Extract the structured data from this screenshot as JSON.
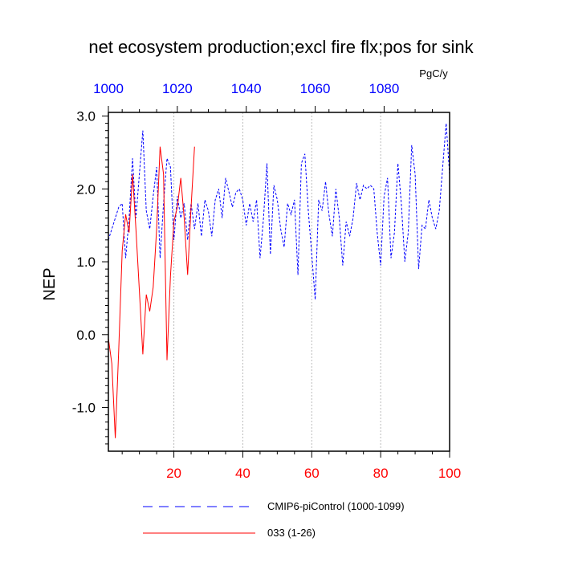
{
  "chart_data": {
    "type": "line",
    "title": "net ecosystem production;excl fire flx;pos for sink",
    "units": "PgC/y",
    "ylabel": "NEP",
    "xlim": [
      1,
      100
    ],
    "ylim": [
      -1.6,
      3.05
    ],
    "x_ticks": [
      20,
      40,
      60,
      80,
      100
    ],
    "x_ticks_top": [
      1000,
      1020,
      1040,
      1060,
      1080
    ],
    "y_ticks": [
      "-1.0",
      "0.0",
      "1.0",
      "2.0",
      "3.0"
    ],
    "y_tick_values": [
      -1.0,
      0.0,
      1.0,
      2.0,
      3.0
    ],
    "grid": "vertical dashed",
    "legend_position": "bottom",
    "colors": {
      "ctrl": "#0000ff",
      "run": "#ff0000",
      "tick_bottom": "#ff0000",
      "tick_top": "#0000ff"
    },
    "series": [
      {
        "name": "CMIP6-piControl (1000-1099)",
        "style": "dashed",
        "color": "#0000ff",
        "x": [
          1,
          2,
          3,
          4,
          5,
          6,
          7,
          8,
          9,
          10,
          11,
          12,
          13,
          14,
          15,
          16,
          17,
          18,
          19,
          20,
          21,
          22,
          23,
          24,
          25,
          26,
          27,
          28,
          29,
          30,
          31,
          32,
          33,
          34,
          35,
          36,
          37,
          38,
          39,
          40,
          41,
          42,
          43,
          44,
          45,
          46,
          47,
          48,
          49,
          50,
          51,
          52,
          53,
          54,
          55,
          56,
          57,
          58,
          59,
          60,
          61,
          62,
          63,
          64,
          65,
          66,
          67,
          68,
          69,
          70,
          71,
          72,
          73,
          74,
          75,
          76,
          77,
          78,
          79,
          80,
          81,
          82,
          83,
          84,
          85,
          86,
          87,
          88,
          89,
          90,
          91,
          92,
          93,
          94,
          95,
          96,
          97,
          98,
          99,
          100
        ],
        "y": [
          1.3,
          1.45,
          1.6,
          1.75,
          1.8,
          1.05,
          1.6,
          2.42,
          1.6,
          2.2,
          2.8,
          1.7,
          1.45,
          1.9,
          2.3,
          1.05,
          1.8,
          2.42,
          2.3,
          1.3,
          1.9,
          1.6,
          1.8,
          1.3,
          1.8,
          1.45,
          1.8,
          1.35,
          1.85,
          1.7,
          1.35,
          1.85,
          2.0,
          1.6,
          2.15,
          1.95,
          1.75,
          1.95,
          2.0,
          1.85,
          1.5,
          1.8,
          1.55,
          1.85,
          1.05,
          1.6,
          2.35,
          1.1,
          2.05,
          1.85,
          1.45,
          1.2,
          1.8,
          1.65,
          1.85,
          0.82,
          2.35,
          2.48,
          1.7,
          1.1,
          0.48,
          1.85,
          1.7,
          2.1,
          1.65,
          1.35,
          2.0,
          1.6,
          0.95,
          1.55,
          1.35,
          1.6,
          2.08,
          1.85,
          2.05,
          2.0,
          2.05,
          2.0,
          1.4,
          0.95,
          1.9,
          2.15,
          1.05,
          1.4,
          2.35,
          1.8,
          1.0,
          1.4,
          2.6,
          2.2,
          0.9,
          1.5,
          1.45,
          1.85,
          1.6,
          1.45,
          1.7,
          2.3,
          2.9,
          2.2
        ]
      },
      {
        "name": "033 (1-26)",
        "style": "solid",
        "color": "#ff0000",
        "x": [
          1,
          2,
          3,
          4,
          5,
          6,
          7,
          8,
          9,
          10,
          11,
          12,
          13,
          14,
          15,
          16,
          17,
          18,
          19,
          20,
          21,
          22,
          23,
          24,
          25,
          26
        ],
        "y": [
          -0.05,
          -0.4,
          -1.42,
          -0.2,
          1.15,
          1.65,
          1.4,
          2.2,
          1.45,
          0.6,
          -0.27,
          0.55,
          0.32,
          0.65,
          1.45,
          2.58,
          2.2,
          -0.35,
          0.8,
          1.55,
          1.75,
          2.15,
          1.6,
          0.82,
          1.75,
          2.58
        ]
      }
    ]
  }
}
